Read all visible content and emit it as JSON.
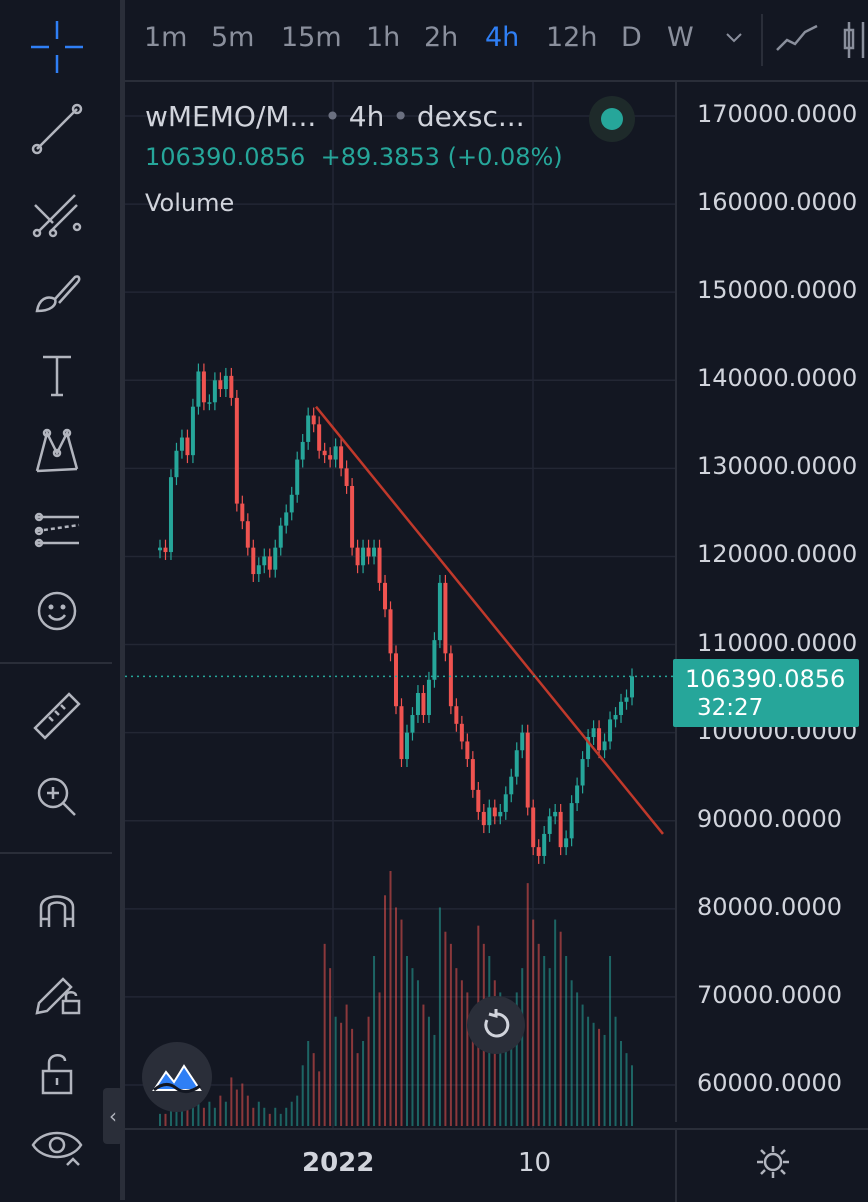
{
  "toolbar_top": {
    "timeframes": [
      "1m",
      "5m",
      "15m",
      "1h",
      "2h",
      "4h",
      "12h",
      "D",
      "W"
    ],
    "active_timeframe": "4h"
  },
  "legend": {
    "symbol": "wMEMO/M...",
    "interval": "4h",
    "exchange": "dexsc...",
    "last_price": "106390.0856",
    "change": "+89.3853",
    "change_pct": "(+0.08%)",
    "volume_label": "Volume"
  },
  "price_axis": {
    "ticks": [
      "170000.0000",
      "160000.0000",
      "150000.0000",
      "140000.0000",
      "130000.0000",
      "120000.0000",
      "110000.0000",
      "100000.0000",
      "90000.0000",
      "80000.0000",
      "70000.0000",
      "60000.0000"
    ],
    "current_price": "106390.0856",
    "countdown": "32:27"
  },
  "time_axis": {
    "ticks": [
      "2022",
      "10"
    ]
  },
  "colors": {
    "up": "#26a69a",
    "down": "#ef5350",
    "trendline": "#c0392b",
    "active": "#2f7ff5",
    "background": "#131722"
  },
  "left_toolbar": {
    "icons": [
      "crosshair-icon",
      "trend-line-icon",
      "fib-icon",
      "brush-icon",
      "text-icon",
      "pattern-icon",
      "forecast-icon",
      "emoji-icon",
      "ruler-icon",
      "zoom-in-icon",
      "magnet-icon",
      "lock-drawing-icon",
      "unlock-icon",
      "eye-icon"
    ]
  },
  "chart_data": {
    "type": "candlestick",
    "symbol": "wMEMO/M...",
    "interval": "4h",
    "ylim": [
      55000,
      175000
    ],
    "x_ticks": [
      "2022",
      "10"
    ],
    "closes": [
      121000,
      120500,
      129000,
      132000,
      133500,
      131500,
      137000,
      141000,
      137500,
      137500,
      140000,
      139000,
      140500,
      138000,
      126000,
      124000,
      121000,
      118000,
      119000,
      120000,
      118500,
      121000,
      123500,
      125000,
      127000,
      131000,
      133000,
      136000,
      135000,
      132000,
      131500,
      131000,
      132500,
      130000,
      128000,
      121000,
      119000,
      121000,
      120000,
      121000,
      117000,
      114000,
      109000,
      103000,
      97000,
      100000,
      102000,
      104500,
      102000,
      106000,
      110500,
      117000,
      109000,
      103000,
      101000,
      99000,
      97000,
      93500,
      91000,
      89500,
      91500,
      90500,
      91000,
      93000,
      95000,
      98000,
      100000,
      91500,
      87000,
      86000,
      88500,
      90500,
      91000,
      87000,
      88000,
      92000,
      94000,
      97000,
      99500,
      100500,
      98000,
      99000,
      101500,
      102000,
      103500,
      104000,
      106390
    ],
    "volume_ylim_note": "volume histogram in lower pane, relative bar heights",
    "volumes": [
      2,
      2,
      3,
      4,
      3,
      5,
      4,
      6,
      3,
      4,
      3,
      5,
      4,
      8,
      6,
      7,
      5,
      3,
      4,
      3,
      2,
      3,
      2,
      3,
      4,
      5,
      10,
      14,
      12,
      9,
      30,
      26,
      18,
      17,
      20,
      16,
      12,
      14,
      18,
      28,
      22,
      38,
      42,
      36,
      34,
      28,
      26,
      24,
      20,
      18,
      15,
      36,
      32,
      30,
      26,
      24,
      22,
      19,
      33,
      30,
      28,
      24,
      22,
      20,
      18,
      22,
      26,
      40,
      34,
      30,
      28,
      26,
      34,
      32,
      28,
      24,
      22,
      20,
      18,
      17,
      16,
      15,
      28,
      18,
      14,
      12,
      10
    ],
    "trendline": {
      "from_price": 137000,
      "to_price": 88500
    }
  }
}
